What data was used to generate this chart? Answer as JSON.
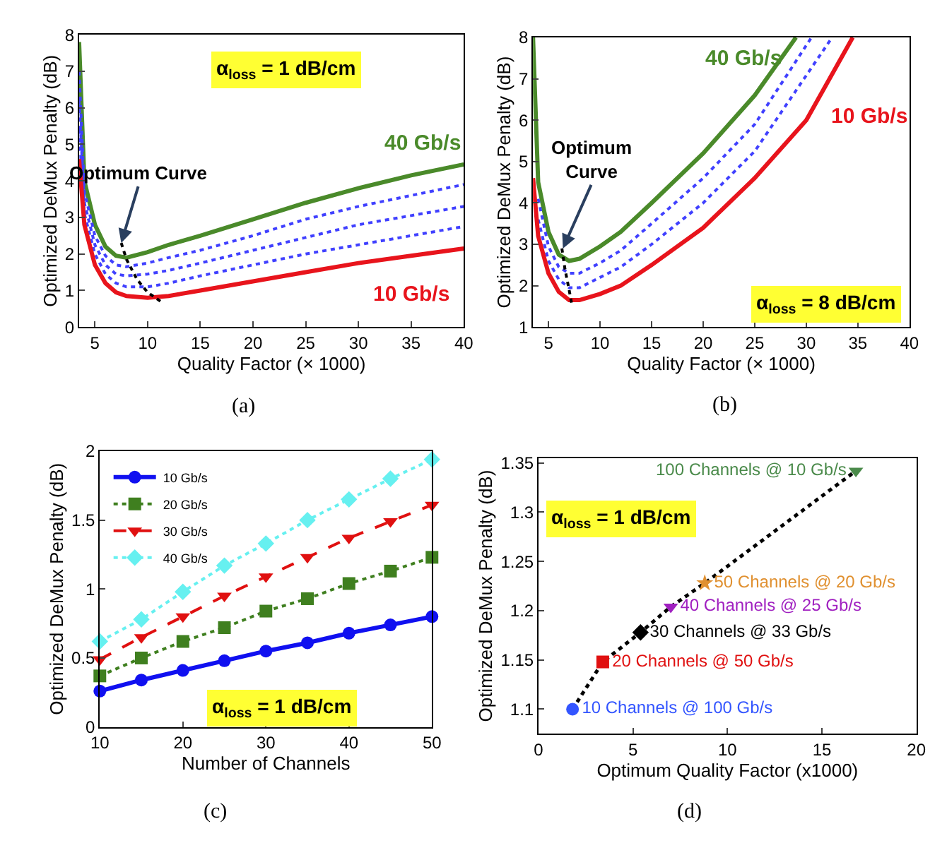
{
  "chart_data": [
    {
      "type": "line",
      "xlabel": "Quality Factor (× 1000)",
      "ylabel": "Optimized DeMux Penalty (dB)",
      "xlim": [
        3.5,
        40
      ],
      "xticks": [
        5,
        10,
        15,
        20,
        25,
        30,
        35,
        40
      ],
      "ylim": [
        0,
        8
      ],
      "yticks": [
        0,
        1,
        2,
        3,
        4,
        5,
        6,
        7,
        8
      ],
      "annotations": [
        "α$_{loss}$ = 1 dB/cm",
        "(a)",
        {
          "text": "Optimum Curve",
          "x": 7.5,
          "y": 2.3
        }
      ],
      "series": [
        {
          "name": "40 Gb/s",
          "color": "#4a8a2a",
          "line_style": "solid",
          "x": [
            3.5,
            4,
            5,
            6,
            7,
            8,
            10,
            12,
            15,
            20,
            25,
            30,
            35,
            40
          ],
          "values": [
            7.8,
            4.0,
            2.8,
            2.2,
            1.95,
            1.9,
            2.05,
            2.25,
            2.5,
            2.95,
            3.4,
            3.8,
            4.15,
            4.45
          ]
        },
        {
          "color": "#4040ff",
          "line_style": "dotted",
          "x": [
            3.5,
            4,
            5,
            6,
            7,
            8,
            10,
            12,
            15,
            20,
            25,
            30,
            35,
            40
          ],
          "values": [
            7.0,
            3.7,
            2.5,
            1.95,
            1.7,
            1.65,
            1.75,
            1.9,
            2.1,
            2.5,
            2.95,
            3.3,
            3.6,
            3.9
          ]
        },
        {
          "color": "#4040ff",
          "line_style": "dotted",
          "x": [
            3.5,
            4,
            5,
            6,
            7,
            8,
            10,
            12,
            15,
            20,
            25,
            30,
            35,
            40
          ],
          "values": [
            6.2,
            3.4,
            2.25,
            1.7,
            1.45,
            1.4,
            1.45,
            1.55,
            1.75,
            2.1,
            2.45,
            2.8,
            3.05,
            3.3
          ]
        },
        {
          "color": "#4040ff",
          "line_style": "dotted",
          "x": [
            3.5,
            4,
            5,
            6,
            7,
            8,
            10,
            12,
            15,
            20,
            25,
            30,
            35,
            40
          ],
          "values": [
            5.4,
            3.1,
            2.0,
            1.45,
            1.2,
            1.1,
            1.1,
            1.2,
            1.4,
            1.7,
            2.0,
            2.25,
            2.5,
            2.75
          ]
        },
        {
          "name": "10 Gb/s",
          "color": "#e8141c",
          "line_style": "solid",
          "x": [
            3.5,
            4,
            5,
            6,
            7,
            8,
            10,
            12,
            15,
            20,
            25,
            30,
            35,
            40
          ],
          "values": [
            4.6,
            2.8,
            1.7,
            1.2,
            0.95,
            0.85,
            0.8,
            0.85,
            1.0,
            1.25,
            1.5,
            1.75,
            1.95,
            2.15
          ]
        },
        {
          "color": "#000000",
          "line_style": "dotted",
          "x": [
            7.5,
            8,
            9,
            10,
            11.5
          ],
          "values": [
            2.3,
            1.85,
            1.3,
            0.95,
            0.65
          ]
        }
      ]
    },
    {
      "type": "line",
      "xlabel": "Quality Factor (× 1000)",
      "ylabel": "Optimized DeMux Penalty (dB)",
      "xlim": [
        3.5,
        40
      ],
      "xticks": [
        5,
        10,
        15,
        20,
        25,
        30,
        35,
        40
      ],
      "ylim": [
        1,
        8
      ],
      "yticks": [
        1,
        2,
        3,
        4,
        5,
        6,
        7,
        8
      ],
      "annotations": [
        "α$_{loss}$ = 8 dB/cm",
        "(b)",
        {
          "text": "Optimum\nCurve",
          "x": 6.4,
          "y": 2.9
        }
      ],
      "series": [
        {
          "name": "40 Gb/s",
          "color": "#4a8a2a",
          "line_style": "solid",
          "x": [
            3.5,
            4,
            5,
            6,
            7,
            8,
            10,
            12,
            15,
            20,
            25,
            29
          ],
          "values": [
            8,
            4.5,
            3.3,
            2.75,
            2.6,
            2.65,
            2.95,
            3.3,
            4.0,
            5.2,
            6.6,
            8
          ]
        },
        {
          "color": "#4040ff",
          "line_style": "dotted",
          "x": [
            4,
            5,
            6,
            7,
            8,
            10,
            12,
            15,
            20,
            25,
            30.5
          ],
          "values": [
            4.1,
            2.95,
            2.45,
            2.3,
            2.3,
            2.55,
            2.85,
            3.5,
            4.6,
            5.9,
            8
          ]
        },
        {
          "color": "#4040ff",
          "line_style": "dotted",
          "x": [
            4,
            5,
            6,
            7,
            8,
            10,
            12,
            15,
            20,
            25,
            32.5
          ],
          "values": [
            3.6,
            2.6,
            2.15,
            1.95,
            1.95,
            2.2,
            2.45,
            3.0,
            4.0,
            5.25,
            8
          ]
        },
        {
          "name": "10 Gb/s",
          "color": "#e8141c",
          "line_style": "solid",
          "x": [
            3.5,
            4,
            5,
            6,
            7,
            8,
            10,
            12,
            15,
            20,
            25,
            30,
            34.5
          ],
          "values": [
            4.6,
            3.2,
            2.3,
            1.85,
            1.65,
            1.65,
            1.8,
            2.0,
            2.5,
            3.4,
            4.6,
            6.0,
            8
          ]
        },
        {
          "color": "#000000",
          "line_style": "dotted",
          "x": [
            6.3,
            6.6,
            7,
            7.3
          ],
          "values": [
            2.9,
            2.4,
            1.9,
            1.5
          ]
        }
      ]
    },
    {
      "type": "line",
      "xlabel": "Number of Channels",
      "ylabel": "Optimized DeMux Penalty (dB)",
      "xlim": [
        10,
        50
      ],
      "xticks": [
        10,
        20,
        30,
        40,
        50
      ],
      "ylim": [
        0,
        2
      ],
      "yticks": [
        0,
        0.5,
        1,
        1.5,
        2
      ],
      "legend": "top left",
      "annotations": [
        "α$_{loss}$ = 1 dB/cm",
        "(c)"
      ],
      "series": [
        {
          "name": "10 Gb/s",
          "color": "#1010f0",
          "marker": "circle",
          "line_style": "solid",
          "x": [
            10,
            15,
            20,
            25,
            30,
            35,
            40,
            45,
            50
          ],
          "values": [
            0.26,
            0.34,
            0.41,
            0.48,
            0.55,
            0.61,
            0.68,
            0.74,
            0.8
          ]
        },
        {
          "name": "20 Gb/s",
          "color": "#3f7f1f",
          "marker": "square",
          "line_style": "dotted",
          "x": [
            10,
            15,
            20,
            25,
            30,
            35,
            40,
            45,
            50
          ],
          "values": [
            0.37,
            0.5,
            0.62,
            0.72,
            0.84,
            0.93,
            1.04,
            1.13,
            1.23
          ]
        },
        {
          "name": "30 Gb/s",
          "color": "#e01010",
          "marker": "triangle",
          "line_style": "dashed",
          "x": [
            10,
            15,
            20,
            25,
            30,
            35,
            40,
            45,
            50
          ],
          "values": [
            0.49,
            0.65,
            0.8,
            0.95,
            1.09,
            1.23,
            1.37,
            1.49,
            1.61
          ]
        },
        {
          "name": "40 Gb/s",
          "color": "#66f0f0",
          "marker": "diamond",
          "line_style": "dotted",
          "x": [
            10,
            15,
            20,
            25,
            30,
            35,
            40,
            45,
            50
          ],
          "values": [
            0.62,
            0.78,
            0.98,
            1.17,
            1.33,
            1.5,
            1.65,
            1.8,
            1.94
          ]
        }
      ]
    },
    {
      "type": "scatter",
      "xlabel": "Optimum Quality Factor (x1000)",
      "ylabel": "Optimized DeMux Penalty (dB)",
      "xlim": [
        0,
        20
      ],
      "xticks": [
        0,
        5,
        10,
        15,
        20
      ],
      "ylim": [
        1.075,
        1.355
      ],
      "yticks": [
        1.1,
        1.15,
        1.2,
        1.25,
        1.3,
        1.35
      ],
      "annotations": [
        "α$_{loss}$ = 1 dB/cm",
        "(d)"
      ],
      "series": [
        {
          "type": "line",
          "color": "#000000",
          "line_style": "dotted",
          "x": [
            1.8,
            3.4,
            5.4,
            7.0,
            8.8,
            16.8
          ],
          "values": [
            1.1,
            1.148,
            1.178,
            1.204,
            1.228,
            1.342
          ]
        },
        {
          "name": "10 Channels @ 100 Gb/s",
          "color": "#3355ff",
          "marker": "circle",
          "x": [
            1.8
          ],
          "values": [
            1.1
          ]
        },
        {
          "name": "20 Channels @ 50 Gb/s",
          "color": "#e01010",
          "marker": "square",
          "x": [
            3.4
          ],
          "values": [
            1.148
          ]
        },
        {
          "name": "30 Channels @ 33 Gb/s",
          "color": "#000000",
          "marker": "diamond",
          "x": [
            5.4
          ],
          "values": [
            1.178
          ]
        },
        {
          "name": "40 Channels @ 25 Gb/s",
          "color": "#a020c0",
          "marker": "triangle",
          "x": [
            7.0
          ],
          "values": [
            1.204
          ]
        },
        {
          "name": "50 Channels @ 20 Gb/s",
          "color": "#e09030",
          "marker": "star",
          "x": [
            8.8
          ],
          "values": [
            1.228
          ]
        },
        {
          "name": "100 Channels @ 10 Gb/s",
          "color": "#4a8a4a",
          "marker": "triangle",
          "x": [
            16.8
          ],
          "values": [
            1.342
          ]
        }
      ]
    }
  ]
}
